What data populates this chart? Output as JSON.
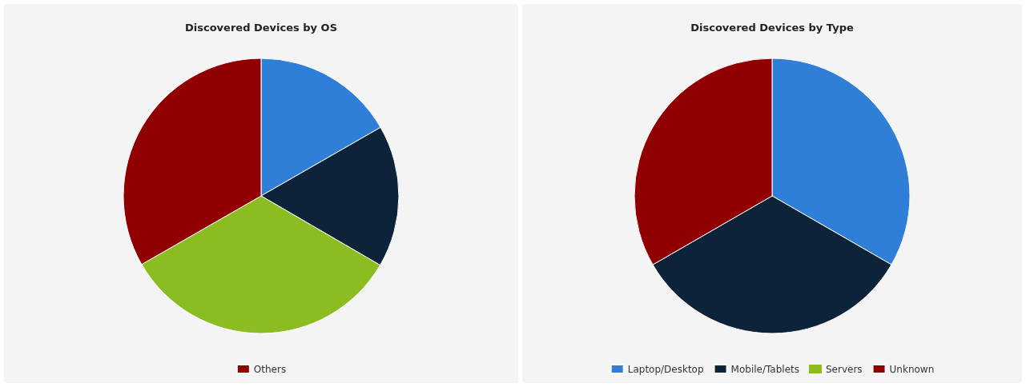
{
  "chart_data": [
    {
      "type": "pie",
      "title": "Discovered Devices by OS",
      "categories": [
        null,
        null,
        null,
        "Others"
      ],
      "values": [
        16.7,
        16.7,
        33.3,
        33.3
      ],
      "colors": [
        "#2f7ed8",
        "#0d233a",
        "#8bbc21",
        "#910000"
      ],
      "legend": "bottom"
    },
    {
      "type": "pie",
      "title": "Discovered Devices by Type",
      "categories": [
        "Laptop/Desktop",
        "Mobile/Tablets",
        "Servers",
        "Unknown"
      ],
      "values": [
        33.33,
        33.33,
        0,
        33.34
      ],
      "colors": [
        "#2f7ed8",
        "#0d233a",
        "#8bbc21",
        "#910000"
      ],
      "legend": "bottom"
    }
  ]
}
